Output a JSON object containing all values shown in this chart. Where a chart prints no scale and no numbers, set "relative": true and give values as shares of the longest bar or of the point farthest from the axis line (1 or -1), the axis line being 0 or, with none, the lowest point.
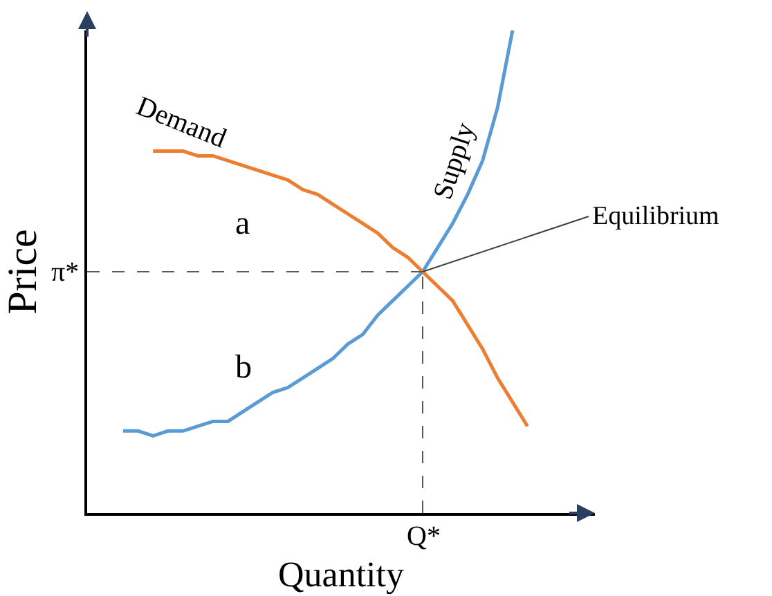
{
  "chart_data": {
    "type": "line",
    "relative": true,
    "xlabel": "Quantity",
    "ylabel": "Price",
    "categories": [
      null,
      null,
      null,
      null,
      null,
      null,
      null,
      null,
      null,
      null,
      null,
      null,
      null,
      null,
      null,
      null,
      null,
      null,
      null,
      null,
      null,
      null,
      null,
      null,
      null,
      null,
      null,
      null
    ],
    "series": [
      {
        "name": "Supply",
        "color": "#5b9bd5",
        "values": [
          0.17,
          0.17,
          0.16,
          0.17,
          0.17,
          0.18,
          0.19,
          0.19,
          0.21,
          0.23,
          0.25,
          0.26,
          0.28,
          0.3,
          0.32,
          0.35,
          0.37,
          0.41,
          0.44,
          0.47,
          0.5,
          0.55,
          0.6,
          0.66,
          0.73,
          0.84,
          1.0,
          null
        ]
      },
      {
        "name": "Demand",
        "color": "#ed7d31",
        "values": [
          null,
          null,
          0.75,
          0.75,
          0.75,
          0.74,
          0.74,
          0.73,
          0.72,
          0.71,
          0.7,
          0.69,
          0.67,
          0.66,
          0.64,
          0.62,
          0.6,
          0.58,
          0.55,
          0.53,
          0.5,
          0.47,
          0.44,
          0.39,
          0.34,
          0.28,
          0.23,
          0.18
        ]
      }
    ],
    "ref_lines": [
      {
        "axis": "x",
        "label": "Q*",
        "line_style": "dashed",
        "color": "#595959"
      },
      {
        "axis": "y",
        "value": 0.5,
        "label": "π*",
        "line_style": "dashed",
        "color": "#595959"
      }
    ],
    "annotations": [
      "a",
      "b",
      "Equilibrium"
    ],
    "legend": false,
    "marker": "none",
    "line_style": "solid"
  }
}
